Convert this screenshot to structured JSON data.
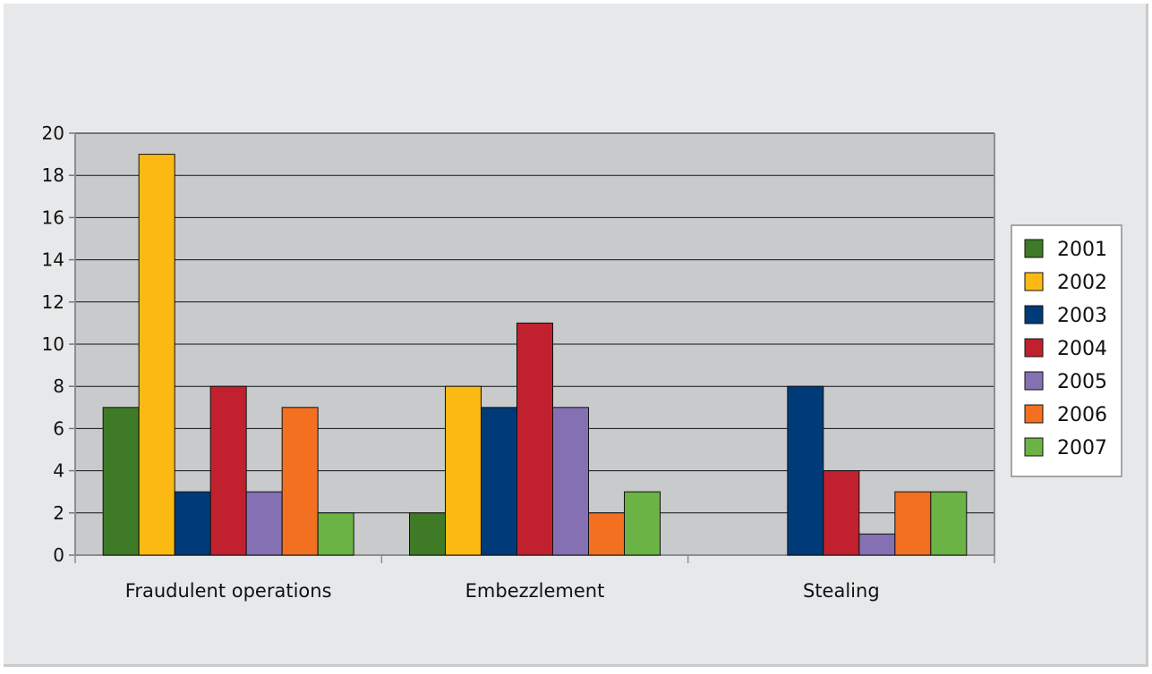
{
  "chart_data": {
    "type": "bar",
    "categories": [
      "Fraudulent operations",
      "Embezzlement",
      "Stealing"
    ],
    "series": [
      {
        "name": "2001",
        "values": [
          7,
          2,
          0
        ],
        "color": "#3f7a26"
      },
      {
        "name": "2002",
        "values": [
          19,
          8,
          0
        ],
        "color": "#fdb913"
      },
      {
        "name": "2003",
        "values": [
          3,
          7,
          8
        ],
        "color": "#003a78"
      },
      {
        "name": "2004",
        "values": [
          8,
          11,
          4
        ],
        "color": "#c1212e"
      },
      {
        "name": "2005",
        "values": [
          3,
          7,
          1
        ],
        "color": "#8470b2"
      },
      {
        "name": "2006",
        "values": [
          7,
          2,
          3
        ],
        "color": "#f37021"
      },
      {
        "name": "2007",
        "values": [
          2,
          3,
          3
        ],
        "color": "#6ab344"
      }
    ],
    "yticks": [
      "0",
      "2",
      "4",
      "6",
      "8",
      "10",
      "12",
      "14",
      "16",
      "18",
      "20"
    ],
    "ylim": [
      0,
      20
    ],
    "grid": true,
    "legend_position": "right",
    "plot_background": "#c9cacc"
  }
}
